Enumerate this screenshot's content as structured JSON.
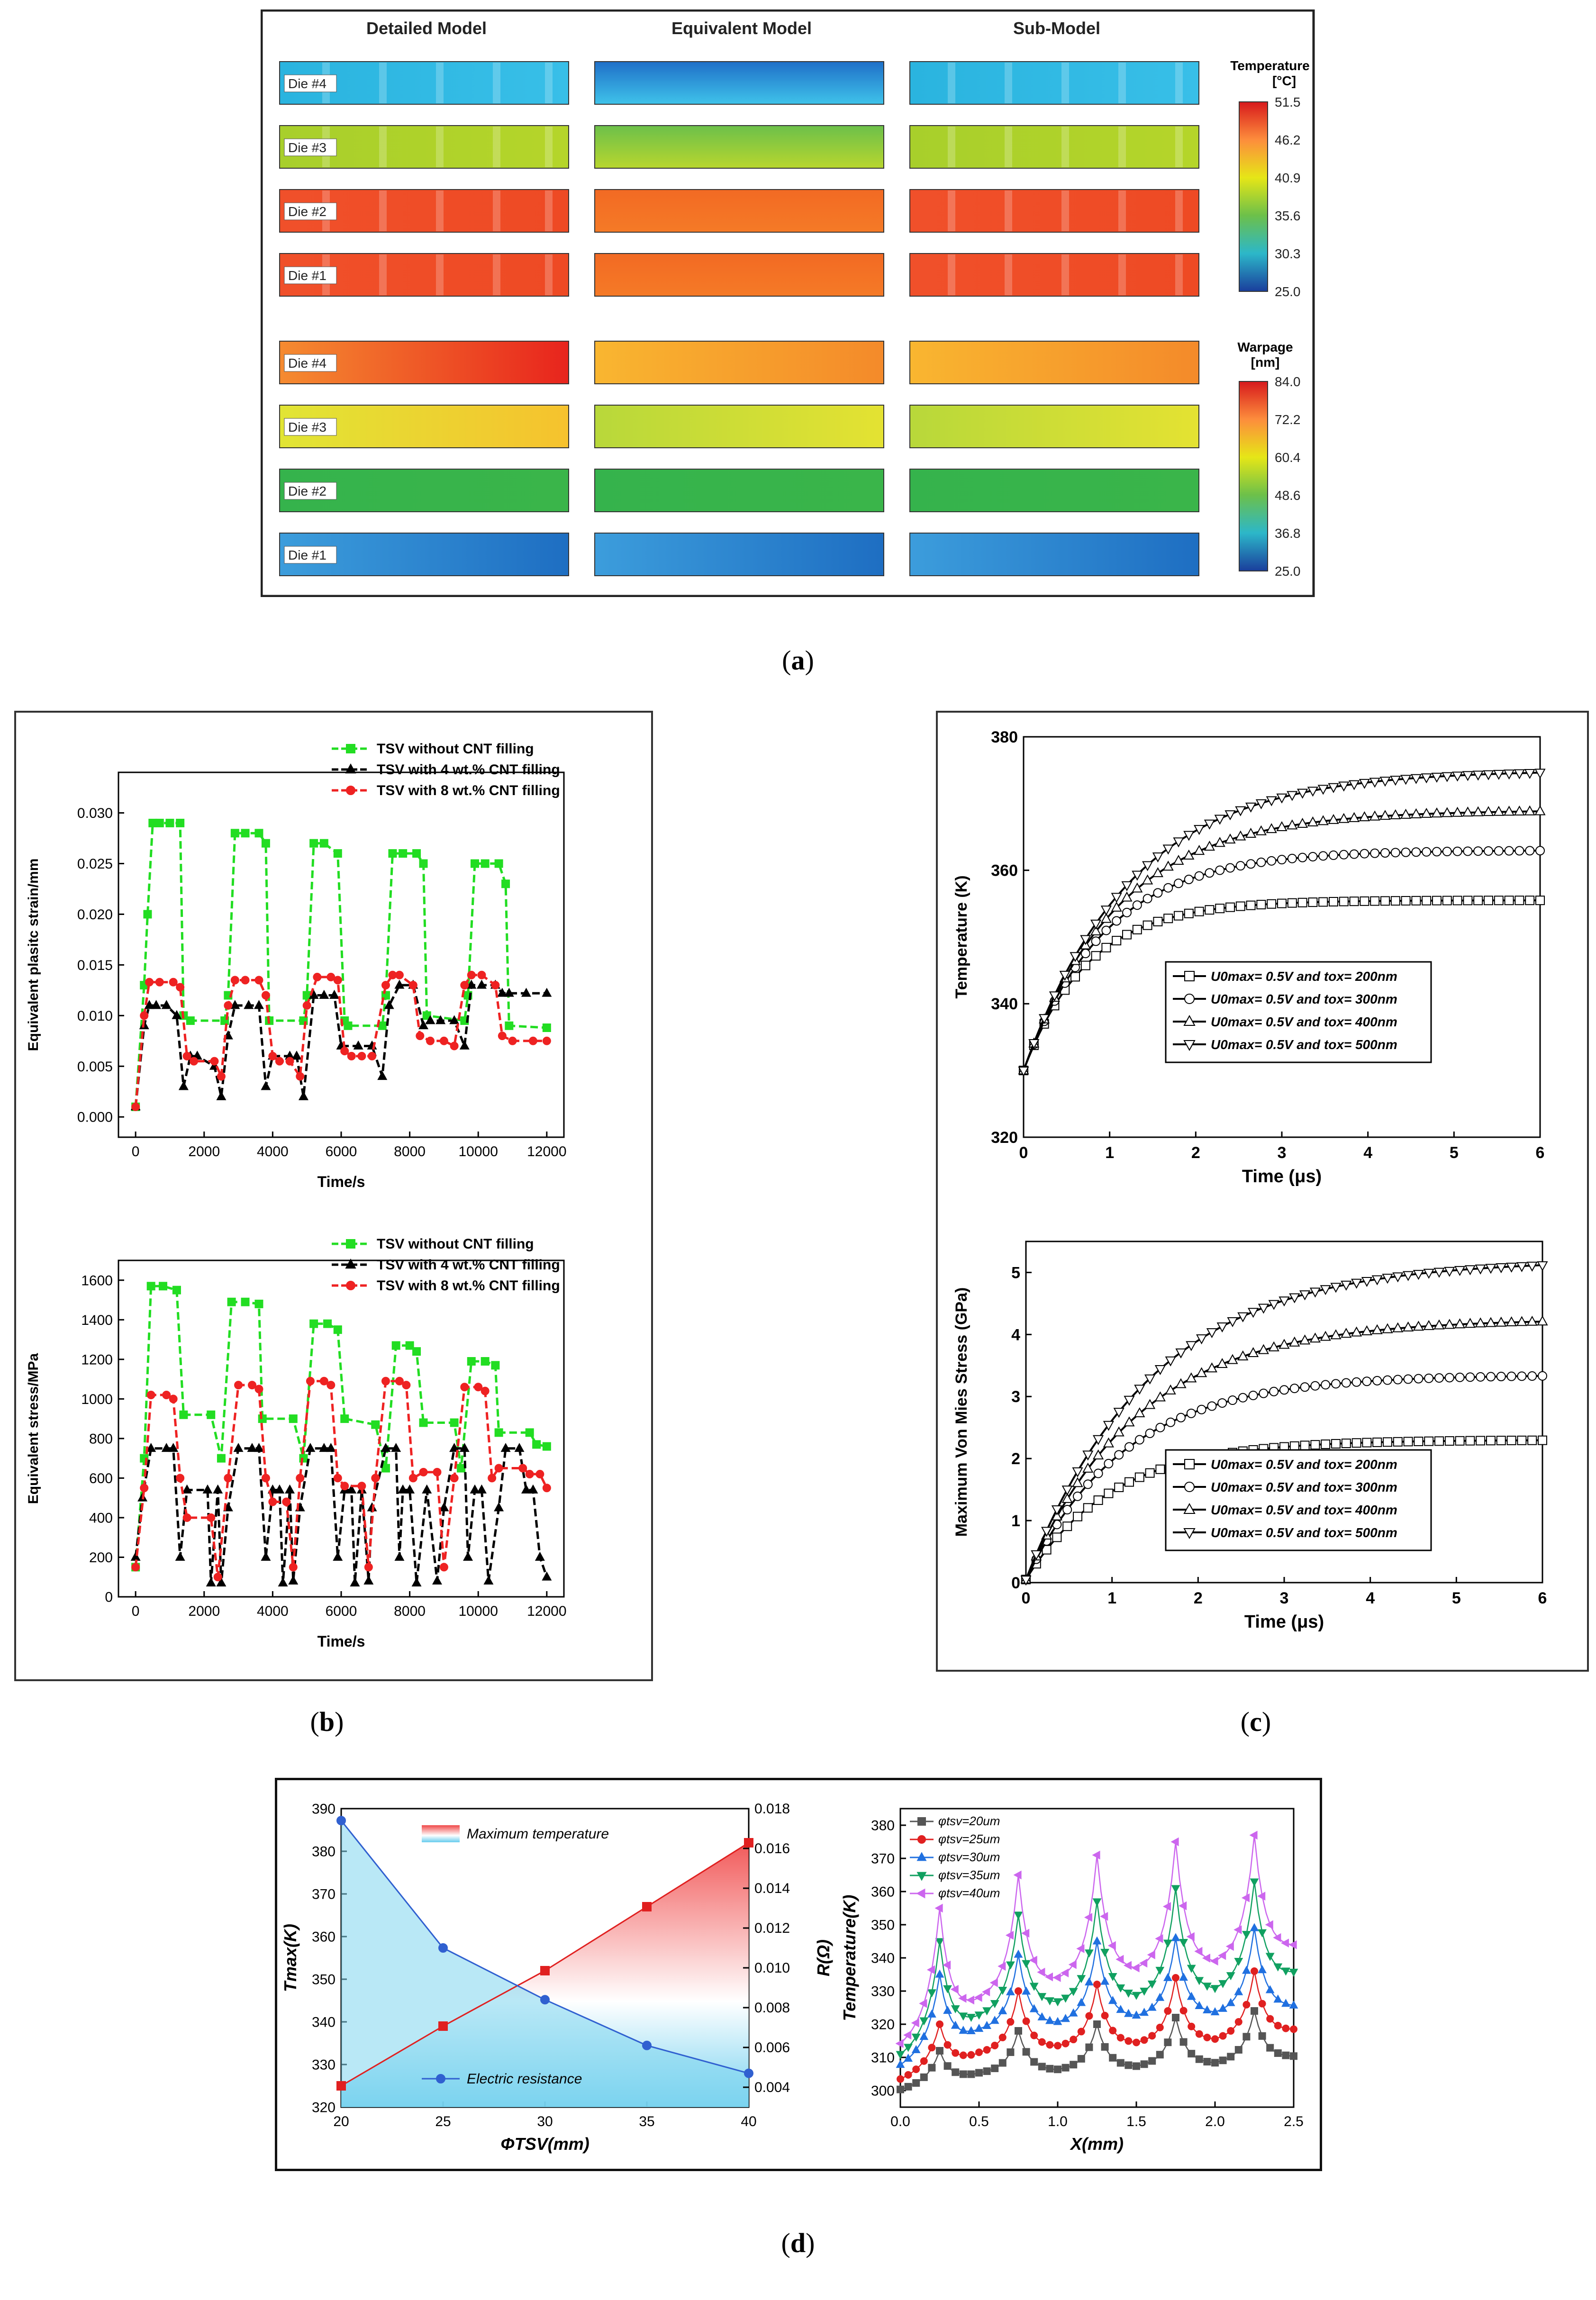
{
  "captions": {
    "a": "a",
    "b": "b",
    "c": "c",
    "d": "d"
  },
  "panel_a": {
    "models": [
      "Detailed Model",
      "Equivalent Model",
      "Sub-Model"
    ],
    "die_labels": [
      "Die #4",
      "Die #3",
      "Die #2",
      "Die #1"
    ],
    "temperature": {
      "title1": "Temperature",
      "title2": "[°C]",
      "ticks": [
        "51.5",
        "46.2",
        "40.9",
        "35.6",
        "30.3",
        "25.0"
      ]
    },
    "warpage": {
      "title1": "Warpage",
      "title2": "[nm]",
      "ticks": [
        "84.0",
        "72.2",
        "60.4",
        "48.6",
        "36.8",
        "25.0"
      ]
    }
  },
  "chart_data": [
    {
      "id": "b-strain",
      "type": "line",
      "ylabel": "Equivalent plasitc strain/mm",
      "xlabel": "Time/s",
      "xlim": [
        -500,
        12500
      ],
      "ylim": [
        -0.002,
        0.034
      ],
      "xticks": [
        "0",
        "2000",
        "4000",
        "6000",
        "8000",
        "10000",
        "12000"
      ],
      "yticks": [
        "0.000",
        "0.005",
        "0.010",
        "0.015",
        "0.020",
        "0.025",
        "0.030"
      ],
      "legend": [
        "TSV without CNT filling",
        "TSV with 4 wt.% CNT filling",
        "TSV with 8 wt.% CNT filling"
      ],
      "series": [
        {
          "name": "TSV without CNT filling",
          "color": "#22dd22",
          "marker": "square",
          "x": [
            0,
            250,
            350,
            500,
            700,
            1000,
            1300,
            1400,
            1600,
            2600,
            2700,
            2900,
            3200,
            3600,
            3800,
            3900,
            4900,
            5000,
            5200,
            5500,
            5900,
            6100,
            6200,
            7200,
            7300,
            7500,
            7800,
            8200,
            8400,
            8500,
            9600,
            9700,
            9900,
            10200,
            10600,
            10800,
            10900,
            12000
          ],
          "y": [
            0.001,
            0.013,
            0.02,
            0.029,
            0.029,
            0.029,
            0.029,
            0.01,
            0.0095,
            0.0095,
            0.012,
            0.028,
            0.028,
            0.028,
            0.027,
            0.0095,
            0.0095,
            0.012,
            0.027,
            0.027,
            0.026,
            0.0095,
            0.009,
            0.009,
            0.012,
            0.026,
            0.026,
            0.026,
            0.025,
            0.01,
            0.0095,
            0.012,
            0.025,
            0.025,
            0.025,
            0.023,
            0.009,
            0.0088
          ]
        },
        {
          "name": "TSV with 4 wt.% CNT filling",
          "color": "#000000",
          "marker": "triangle",
          "x": [
            0,
            250,
            400,
            600,
            900,
            1200,
            1400,
            1600,
            1800,
            2300,
            2500,
            2700,
            2900,
            3300,
            3600,
            3800,
            4000,
            4500,
            4700,
            4900,
            5200,
            5500,
            5800,
            6000,
            6500,
            6900,
            7200,
            7400,
            7700,
            8100,
            8400,
            8600,
            8900,
            9300,
            9600,
            9800,
            10100,
            10500,
            10700,
            10900,
            11400,
            12000
          ],
          "y": [
            0.001,
            0.009,
            0.011,
            0.011,
            0.011,
            0.01,
            0.003,
            0.006,
            0.006,
            0.005,
            0.002,
            0.008,
            0.011,
            0.011,
            0.011,
            0.003,
            0.006,
            0.006,
            0.006,
            0.002,
            0.012,
            0.012,
            0.012,
            0.007,
            0.007,
            0.007,
            0.004,
            0.011,
            0.013,
            0.013,
            0.009,
            0.0095,
            0.0095,
            0.0095,
            0.007,
            0.013,
            0.013,
            0.013,
            0.0122,
            0.0122,
            0.0122,
            0.0122
          ]
        },
        {
          "name": "TSV with 8 wt.% CNT filling",
          "color": "#ee2222",
          "marker": "circle",
          "x": [
            0,
            250,
            400,
            700,
            1100,
            1300,
            1500,
            1700,
            2300,
            2500,
            2700,
            2900,
            3200,
            3600,
            3800,
            4000,
            4200,
            4500,
            4800,
            5000,
            5300,
            5700,
            5900,
            6100,
            6300,
            6600,
            6900,
            7300,
            7500,
            7700,
            8100,
            8300,
            8600,
            9000,
            9300,
            9600,
            9800,
            10100,
            10500,
            10700,
            11000,
            11600,
            12000
          ],
          "y": [
            0.001,
            0.01,
            0.0133,
            0.0133,
            0.0133,
            0.0128,
            0.006,
            0.0055,
            0.0055,
            0.004,
            0.011,
            0.0135,
            0.0135,
            0.0135,
            0.012,
            0.006,
            0.0055,
            0.0055,
            0.004,
            0.011,
            0.0138,
            0.0138,
            0.0135,
            0.0065,
            0.006,
            0.006,
            0.006,
            0.013,
            0.014,
            0.014,
            0.013,
            0.008,
            0.0075,
            0.0075,
            0.007,
            0.013,
            0.014,
            0.014,
            0.013,
            0.008,
            0.0075,
            0.0075,
            0.0075
          ]
        }
      ]
    },
    {
      "id": "b-stress",
      "type": "line",
      "ylabel": "Equivalent stress/MPa",
      "xlabel": "Time/s",
      "xlim": [
        -500,
        12500
      ],
      "ylim": [
        0,
        1700
      ],
      "xticks": [
        "0",
        "2000",
        "4000",
        "6000",
        "8000",
        "10000",
        "12000"
      ],
      "yticks": [
        "0",
        "200",
        "400",
        "600",
        "800",
        "1000",
        "1200",
        "1400",
        "1600"
      ],
      "legend": [
        "TSV without CNT filling",
        "TSV with 4 wt.% CNT filling",
        "TSV with 8 wt.% CNT filling"
      ],
      "series": [
        {
          "name": "TSV without CNT filling",
          "color": "#22dd22",
          "marker": "square",
          "x": [
            0,
            250,
            450,
            800,
            1200,
            1400,
            2200,
            2500,
            2800,
            3200,
            3600,
            3700,
            4600,
            4900,
            5200,
            5600,
            5900,
            6100,
            7000,
            7300,
            7600,
            8000,
            8200,
            8400,
            9300,
            9500,
            9800,
            10200,
            10500,
            10600,
            11500,
            11700,
            12000
          ],
          "y": [
            150,
            700,
            1570,
            1570,
            1550,
            920,
            920,
            700,
            1490,
            1490,
            1480,
            900,
            900,
            700,
            1380,
            1380,
            1350,
            900,
            870,
            650,
            1270,
            1270,
            1240,
            880,
            880,
            650,
            1190,
            1190,
            1170,
            830,
            830,
            770,
            760
          ]
        },
        {
          "name": "TSV with 4 wt.% CNT filling",
          "color": "#000000",
          "marker": "triangle",
          "x": [
            0,
            200,
            450,
            900,
            1100,
            1300,
            1500,
            2100,
            2200,
            2400,
            2500,
            2700,
            3000,
            3400,
            3600,
            3800,
            4000,
            4200,
            4300,
            4500,
            4600,
            4800,
            5100,
            5500,
            5700,
            5900,
            6100,
            6300,
            6400,
            6600,
            6800,
            6900,
            7300,
            7600,
            7700,
            7800,
            8000,
            8200,
            8500,
            8800,
            9000,
            9300,
            9600,
            9700,
            9900,
            10100,
            10300,
            10600,
            10800,
            11200,
            11400,
            11600,
            11800,
            12000
          ],
          "y": [
            200,
            500,
            750,
            750,
            750,
            200,
            540,
            540,
            70,
            540,
            70,
            450,
            750,
            750,
            750,
            200,
            540,
            540,
            70,
            540,
            80,
            450,
            750,
            750,
            750,
            200,
            540,
            540,
            70,
            540,
            80,
            450,
            750,
            750,
            200,
            540,
            540,
            70,
            540,
            80,
            450,
            750,
            750,
            200,
            540,
            540,
            80,
            450,
            750,
            750,
            540,
            540,
            200,
            100
          ]
        },
        {
          "name": "TSV with 8 wt.% CNT filling",
          "color": "#ee2222",
          "marker": "circle",
          "x": [
            0,
            250,
            450,
            900,
            1100,
            1300,
            1500,
            2200,
            2400,
            2700,
            3000,
            3400,
            3600,
            3800,
            4000,
            4400,
            4600,
            4800,
            5100,
            5500,
            5700,
            5900,
            6100,
            6600,
            6800,
            7000,
            7300,
            7700,
            7900,
            8100,
            8400,
            8800,
            9000,
            9300,
            9600,
            10000,
            10200,
            10400,
            10600,
            11300,
            11500,
            11800,
            12000
          ],
          "y": [
            150,
            550,
            1020,
            1020,
            1000,
            600,
            400,
            400,
            100,
            600,
            1070,
            1070,
            1050,
            600,
            480,
            480,
            150,
            600,
            1090,
            1090,
            1070,
            600,
            560,
            560,
            150,
            600,
            1090,
            1090,
            1070,
            600,
            630,
            630,
            150,
            600,
            1060,
            1060,
            1040,
            600,
            650,
            650,
            620,
            620,
            550
          ]
        }
      ]
    },
    {
      "id": "c-temperature",
      "type": "line",
      "ylabel": "Temperature (K)",
      "xlabel": "Time (μs)",
      "xlim": [
        0,
        6
      ],
      "ylim": [
        320,
        380
      ],
      "xticks": [
        "0",
        "1",
        "2",
        "3",
        "4",
        "5",
        "6"
      ],
      "yticks": [
        "320",
        "340",
        "360",
        "380"
      ],
      "legend": [
        "U0max= 0.5V and tox= 200nm",
        "U0max= 0.5V and tox= 300nm",
        "U0max= 0.5V and tox= 400nm",
        "U0max= 0.5V and tox= 500nm"
      ],
      "series": [
        {
          "name": "200nm",
          "marker": "square",
          "x0": 330,
          "final": 355.5,
          "tau": 0.75
        },
        {
          "name": "300nm",
          "marker": "circle",
          "x0": 330,
          "final": 363,
          "tau": 0.95
        },
        {
          "name": "400nm",
          "marker": "triangle",
          "x0": 330,
          "final": 369,
          "tau": 1.1
        },
        {
          "name": "500nm",
          "marker": "triangle-down",
          "x0": 330,
          "final": 375,
          "tau": 1.25
        }
      ]
    },
    {
      "id": "c-stress",
      "type": "line",
      "ylabel": "Maximum Von Mies Stress (GPa)",
      "xlabel": "Time (μs)",
      "xlim": [
        0,
        6
      ],
      "ylim": [
        0,
        5.5
      ],
      "xticks": [
        "0",
        "1",
        "2",
        "3",
        "4",
        "5",
        "6"
      ],
      "yticks": [
        "0",
        "1",
        "2",
        "3",
        "4",
        "5"
      ],
      "legend": [
        "U0max= 0.5V and tox= 200nm",
        "U0max= 0.5V and tox= 300nm",
        "U0max= 0.5V and tox= 400nm",
        "U0max= 0.5V and tox= 500nm"
      ],
      "series": [
        {
          "name": "200nm",
          "marker": "square",
          "x0": 0.05,
          "final": 2.3,
          "tau": 1.0
        },
        {
          "name": "300nm",
          "marker": "circle",
          "x0": 0.05,
          "final": 3.35,
          "tau": 1.15
        },
        {
          "name": "400nm",
          "marker": "triangle",
          "x0": 0.05,
          "final": 4.25,
          "tau": 1.3
        },
        {
          "name": "500nm",
          "marker": "triangle-down",
          "x0": 0.05,
          "final": 5.2,
          "tau": 1.45
        }
      ]
    },
    {
      "id": "d-tmax",
      "type": "line",
      "xlabel": "ΦTSV(mm)",
      "ylabel": "Tmax(K)",
      "y2label": "R(Ω)",
      "xlim": [
        20,
        40
      ],
      "ylim": [
        320,
        390
      ],
      "y2lim": [
        0.003,
        0.018
      ],
      "xticks": [
        "20",
        "25",
        "30",
        "35",
        "40"
      ],
      "yticks": [
        "320",
        "330",
        "340",
        "350",
        "360",
        "370",
        "380",
        "390"
      ],
      "y2ticks": [
        "0.004",
        "0.006",
        "0.008",
        "0.010",
        "0.012",
        "0.014",
        "0.016",
        "0.018"
      ],
      "legend": [
        "Maximum temperature",
        "Electric resistance"
      ],
      "series": [
        {
          "name": "Maximum temperature",
          "color": "#e02020",
          "marker": "square",
          "x": [
            20,
            25,
            30,
            35,
            40
          ],
          "y": [
            325,
            339,
            352,
            367,
            382
          ]
        },
        {
          "name": "Electric resistance",
          "color": "#3060d0",
          "marker": "circle",
          "axis": "y2",
          "x": [
            20,
            25,
            30,
            35,
            40
          ],
          "y": [
            0.0174,
            0.011,
            0.0084,
            0.0061,
            0.0047
          ]
        }
      ]
    },
    {
      "id": "d-profile",
      "type": "line",
      "xlabel": "X(mm)",
      "ylabel": "Temperature(K)",
      "xlim": [
        0,
        2.5
      ],
      "ylim": [
        295,
        385
      ],
      "xticks": [
        "0.0",
        "0.5",
        "1.0",
        "1.5",
        "2.0",
        "2.5"
      ],
      "yticks": [
        "300",
        "310",
        "320",
        "330",
        "340",
        "350",
        "360",
        "370",
        "380"
      ],
      "legend": [
        "φtsv=20um",
        "φtsv=25um",
        "φtsv=30um",
        "φtsv=35um",
        "φtsv=40um"
      ],
      "series": [
        {
          "name": "φtsv=20um",
          "color": "#555555",
          "marker": "square",
          "base": [
            300,
            305,
            306,
            307,
            308,
            310
          ],
          "peaks": [
            312,
            318,
            320,
            322,
            324
          ]
        },
        {
          "name": "φtsv=25um",
          "color": "#e02020",
          "marker": "circle",
          "base": [
            303,
            311,
            313,
            314,
            315,
            318
          ],
          "peaks": [
            320,
            330,
            332,
            334,
            336
          ]
        },
        {
          "name": "φtsv=30um",
          "color": "#2070e0",
          "marker": "triangle",
          "base": [
            307,
            318,
            320,
            322,
            323,
            325
          ],
          "peaks": [
            335,
            341,
            345,
            346,
            349
          ]
        },
        {
          "name": "φtsv=35um",
          "color": "#10a060",
          "marker": "triangle-down",
          "base": [
            310,
            322,
            326,
            328,
            330,
            335
          ],
          "peaks": [
            345,
            353,
            357,
            361,
            363
          ]
        },
        {
          "name": "φtsv=40um",
          "color": "#cc66ee",
          "marker": "triangle-left",
          "base": [
            313,
            327,
            333,
            336,
            338,
            343
          ],
          "peaks": [
            355,
            365,
            371,
            375,
            377
          ]
        }
      ]
    }
  ]
}
